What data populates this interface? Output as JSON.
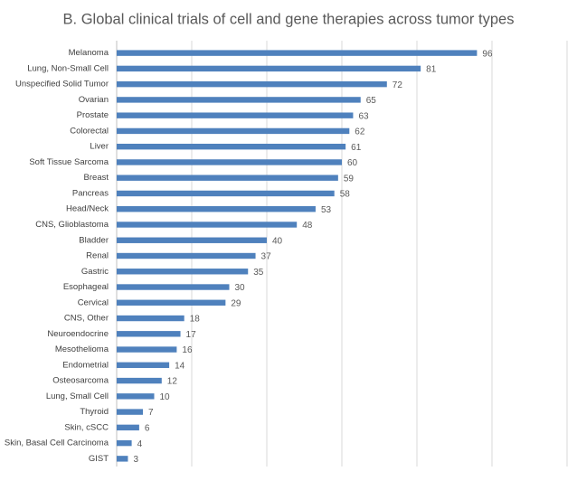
{
  "chart_data": {
    "type": "hbar",
    "title": "B. Global clinical trials of cell and gene therapies across tumor types",
    "categories": [
      "Melanoma",
      "Lung, Non-Small Cell",
      "Unspecified Solid Tumor",
      "Ovarian",
      "Prostate",
      "Colorectal",
      "Liver",
      "Soft Tissue Sarcoma",
      "Breast",
      "Pancreas",
      "Head/Neck",
      "CNS, Glioblastoma",
      "Bladder",
      "Renal",
      "Gastric",
      "Esophageal",
      "Cervical",
      "CNS, Other",
      "Neuroendocrine",
      "Mesothelioma",
      "Endometrial",
      "Osteosarcoma",
      "Lung, Small Cell",
      "Thyroid",
      "Skin, cSCC",
      "Skin, Basal Cell Carcinoma",
      "GIST"
    ],
    "values": [
      96,
      81,
      72,
      65,
      63,
      62,
      61,
      60,
      59,
      58,
      53,
      48,
      40,
      37,
      35,
      30,
      29,
      18,
      17,
      16,
      14,
      12,
      10,
      7,
      6,
      4,
      3
    ],
    "color": "#4f81bd",
    "xlim": [
      0,
      120
    ],
    "xticks": [
      0,
      20,
      40,
      60,
      80,
      100,
      120
    ],
    "grid": true
  }
}
